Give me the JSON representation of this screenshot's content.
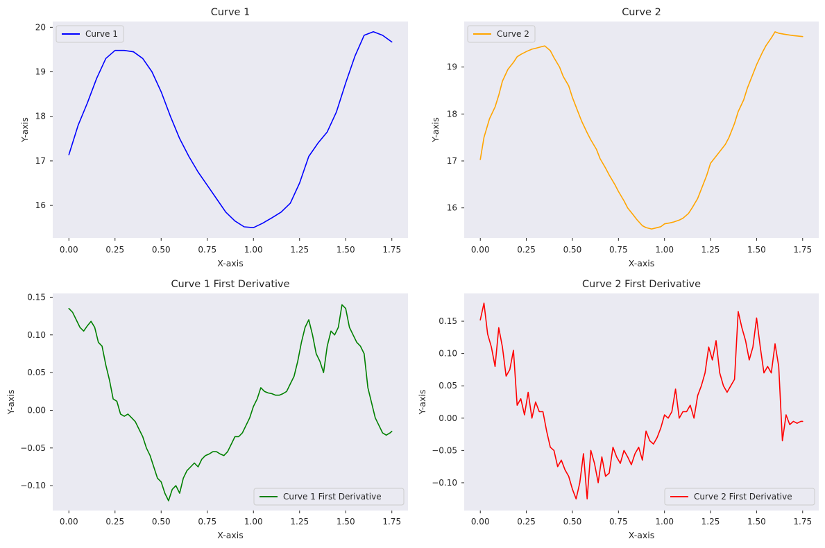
{
  "chart_data": [
    {
      "type": "line",
      "title": "Curve 1",
      "xlabel": "X-axis",
      "ylabel": "Y-axis",
      "xlim": [
        -0.0875,
        1.8375
      ],
      "ylim": [
        15.27,
        20.13
      ],
      "xticks": [
        0.0,
        0.25,
        0.5,
        0.75,
        1.0,
        1.25,
        1.5,
        1.75
      ],
      "xtick_labels": [
        "0.00",
        "0.25",
        "0.50",
        "0.75",
        "1.00",
        "1.25",
        "1.50",
        "1.75"
      ],
      "yticks": [
        16,
        17,
        18,
        19,
        20
      ],
      "ytick_labels": [
        "16",
        "17",
        "18",
        "19",
        "20"
      ],
      "legend": "upper left",
      "grid": false,
      "series": [
        {
          "name": "Curve 1",
          "color": "#0000ff",
          "x": [
            0.0,
            0.05,
            0.1,
            0.15,
            0.2,
            0.25,
            0.3,
            0.35,
            0.4,
            0.45,
            0.5,
            0.55,
            0.6,
            0.65,
            0.7,
            0.75,
            0.8,
            0.85,
            0.9,
            0.95,
            1.0,
            1.05,
            1.1,
            1.15,
            1.2,
            1.25,
            1.3,
            1.35,
            1.4,
            1.45,
            1.5,
            1.55,
            1.6,
            1.65,
            1.7,
            1.75
          ],
          "y": [
            17.14,
            17.8,
            18.3,
            18.85,
            19.3,
            19.48,
            19.48,
            19.45,
            19.3,
            19.0,
            18.55,
            18.0,
            17.5,
            17.1,
            16.75,
            16.45,
            16.15,
            15.85,
            15.65,
            15.52,
            15.5,
            15.6,
            15.72,
            15.85,
            16.05,
            16.5,
            17.1,
            17.4,
            17.65,
            18.1,
            18.75,
            19.35,
            19.82,
            19.9,
            19.82,
            19.67
          ]
        }
      ]
    },
    {
      "type": "line",
      "title": "Curve 2",
      "xlabel": "X-axis",
      "ylabel": "Y-axis",
      "xlim": [
        -0.0875,
        1.8375
      ],
      "ylim": [
        15.36,
        19.97
      ],
      "xticks": [
        0.0,
        0.25,
        0.5,
        0.75,
        1.0,
        1.25,
        1.5,
        1.75
      ],
      "xtick_labels": [
        "0.00",
        "0.25",
        "0.50",
        "0.75",
        "1.00",
        "1.25",
        "1.50",
        "1.75"
      ],
      "yticks": [
        16,
        17,
        18,
        19
      ],
      "ytick_labels": [
        "16",
        "17",
        "18",
        "19"
      ],
      "legend": "upper left",
      "grid": false,
      "series": [
        {
          "name": "Curve 2",
          "color": "#ffa500",
          "x": [
            0.0,
            0.02,
            0.05,
            0.08,
            0.1,
            0.12,
            0.15,
            0.18,
            0.2,
            0.22,
            0.25,
            0.28,
            0.3,
            0.33,
            0.35,
            0.38,
            0.4,
            0.43,
            0.45,
            0.48,
            0.5,
            0.53,
            0.55,
            0.58,
            0.6,
            0.63,
            0.65,
            0.68,
            0.7,
            0.73,
            0.75,
            0.78,
            0.8,
            0.83,
            0.85,
            0.88,
            0.9,
            0.93,
            0.95,
            0.98,
            1.0,
            1.03,
            1.05,
            1.08,
            1.1,
            1.13,
            1.15,
            1.18,
            1.2,
            1.23,
            1.25,
            1.28,
            1.3,
            1.33,
            1.35,
            1.38,
            1.4,
            1.43,
            1.45,
            1.48,
            1.5,
            1.53,
            1.55,
            1.58,
            1.6,
            1.62,
            1.65,
            1.68,
            1.7,
            1.75
          ],
          "y": [
            17.03,
            17.5,
            17.9,
            18.15,
            18.4,
            18.7,
            18.95,
            19.1,
            19.22,
            19.27,
            19.33,
            19.38,
            19.4,
            19.43,
            19.45,
            19.35,
            19.2,
            19.0,
            18.8,
            18.6,
            18.35,
            18.05,
            17.85,
            17.6,
            17.45,
            17.25,
            17.05,
            16.85,
            16.7,
            16.5,
            16.35,
            16.15,
            16.0,
            15.85,
            15.75,
            15.62,
            15.58,
            15.55,
            15.57,
            15.6,
            15.66,
            15.68,
            15.7,
            15.74,
            15.78,
            15.88,
            16.0,
            16.2,
            16.4,
            16.7,
            16.95,
            17.1,
            17.2,
            17.35,
            17.5,
            17.8,
            18.05,
            18.3,
            18.55,
            18.85,
            19.05,
            19.3,
            19.45,
            19.62,
            19.75,
            19.72,
            19.7,
            19.68,
            19.67,
            19.65
          ]
        }
      ]
    },
    {
      "type": "line",
      "title": "Curve 1 First Derivative",
      "xlabel": "X-axis",
      "ylabel": "Y-axis",
      "xlim": [
        -0.0875,
        1.8375
      ],
      "ylim": [
        -0.133,
        0.155
      ],
      "xticks": [
        0.0,
        0.25,
        0.5,
        0.75,
        1.0,
        1.25,
        1.5,
        1.75
      ],
      "xtick_labels": [
        "0.00",
        "0.25",
        "0.50",
        "0.75",
        "1.00",
        "1.25",
        "1.50",
        "1.75"
      ],
      "yticks": [
        -0.1,
        -0.05,
        0.0,
        0.05,
        0.1,
        0.15
      ],
      "ytick_labels": [
        "−0.10",
        "−0.05",
        "0.00",
        "0.05",
        "0.10",
        "0.15"
      ],
      "legend": "lower right",
      "grid": false,
      "series": [
        {
          "name": "Curve 1 First Derivative",
          "color": "#008000",
          "x": [
            0.0,
            0.02,
            0.04,
            0.06,
            0.08,
            0.1,
            0.12,
            0.14,
            0.16,
            0.18,
            0.2,
            0.22,
            0.24,
            0.26,
            0.28,
            0.3,
            0.32,
            0.34,
            0.36,
            0.38,
            0.4,
            0.42,
            0.44,
            0.46,
            0.48,
            0.5,
            0.52,
            0.54,
            0.56,
            0.58,
            0.6,
            0.62,
            0.64,
            0.66,
            0.68,
            0.7,
            0.72,
            0.74,
            0.76,
            0.78,
            0.8,
            0.82,
            0.84,
            0.86,
            0.88,
            0.9,
            0.92,
            0.94,
            0.96,
            0.98,
            1.0,
            1.02,
            1.04,
            1.06,
            1.08,
            1.1,
            1.12,
            1.14,
            1.16,
            1.18,
            1.2,
            1.22,
            1.24,
            1.26,
            1.28,
            1.3,
            1.32,
            1.34,
            1.36,
            1.38,
            1.4,
            1.42,
            1.44,
            1.46,
            1.48,
            1.5,
            1.52,
            1.54,
            1.56,
            1.58,
            1.6,
            1.62,
            1.64,
            1.66,
            1.68,
            1.7,
            1.72,
            1.74,
            1.75
          ],
          "y": [
            0.135,
            0.13,
            0.12,
            0.11,
            0.105,
            0.112,
            0.118,
            0.11,
            0.09,
            0.085,
            0.06,
            0.04,
            0.015,
            0.012,
            -0.005,
            -0.008,
            -0.005,
            -0.01,
            -0.015,
            -0.025,
            -0.035,
            -0.05,
            -0.06,
            -0.075,
            -0.09,
            -0.095,
            -0.11,
            -0.12,
            -0.105,
            -0.1,
            -0.11,
            -0.09,
            -0.08,
            -0.075,
            -0.07,
            -0.075,
            -0.065,
            -0.06,
            -0.058,
            -0.055,
            -0.055,
            -0.058,
            -0.06,
            -0.055,
            -0.045,
            -0.035,
            -0.035,
            -0.03,
            -0.02,
            -0.01,
            0.005,
            0.015,
            0.03,
            0.025,
            0.023,
            0.022,
            0.02,
            0.02,
            0.022,
            0.025,
            0.035,
            0.045,
            0.065,
            0.09,
            0.11,
            0.12,
            0.1,
            0.075,
            0.065,
            0.05,
            0.085,
            0.105,
            0.1,
            0.11,
            0.14,
            0.135,
            0.11,
            0.1,
            0.09,
            0.085,
            0.075,
            0.03,
            0.01,
            -0.01,
            -0.02,
            -0.03,
            -0.033,
            -0.03,
            -0.028
          ]
        }
      ]
    },
    {
      "type": "line",
      "title": "Curve 2 First Derivative",
      "xlabel": "X-axis",
      "ylabel": "Y-axis",
      "xlim": [
        -0.0875,
        1.8375
      ],
      "ylim": [
        -0.143,
        0.193
      ],
      "xticks": [
        0.0,
        0.25,
        0.5,
        0.75,
        1.0,
        1.25,
        1.5,
        1.75
      ],
      "xtick_labels": [
        "0.00",
        "0.25",
        "0.50",
        "0.75",
        "1.00",
        "1.25",
        "1.50",
        "1.75"
      ],
      "yticks": [
        -0.1,
        -0.05,
        0.0,
        0.05,
        0.1,
        0.15
      ],
      "ytick_labels": [
        "−0.10",
        "−0.05",
        "0.00",
        "0.05",
        "0.10",
        "0.15"
      ],
      "legend": "lower right",
      "grid": false,
      "series": [
        {
          "name": "Curve 2 First Derivative",
          "color": "#ff0000",
          "x": [
            0.0,
            0.02,
            0.04,
            0.06,
            0.08,
            0.1,
            0.12,
            0.14,
            0.16,
            0.18,
            0.2,
            0.22,
            0.24,
            0.26,
            0.28,
            0.3,
            0.32,
            0.34,
            0.36,
            0.38,
            0.4,
            0.42,
            0.44,
            0.46,
            0.48,
            0.5,
            0.52,
            0.54,
            0.56,
            0.58,
            0.6,
            0.62,
            0.64,
            0.66,
            0.68,
            0.7,
            0.72,
            0.74,
            0.76,
            0.78,
            0.8,
            0.82,
            0.84,
            0.86,
            0.88,
            0.9,
            0.92,
            0.94,
            0.96,
            0.98,
            1.0,
            1.02,
            1.04,
            1.06,
            1.08,
            1.1,
            1.12,
            1.14,
            1.16,
            1.18,
            1.2,
            1.22,
            1.24,
            1.26,
            1.28,
            1.3,
            1.32,
            1.34,
            1.36,
            1.38,
            1.4,
            1.42,
            1.44,
            1.46,
            1.48,
            1.5,
            1.52,
            1.54,
            1.56,
            1.58,
            1.6,
            1.62,
            1.64,
            1.66,
            1.68,
            1.7,
            1.72,
            1.74,
            1.75
          ],
          "y": [
            0.152,
            0.178,
            0.13,
            0.11,
            0.08,
            0.14,
            0.11,
            0.065,
            0.075,
            0.105,
            0.02,
            0.03,
            0.005,
            0.04,
            0.0,
            0.025,
            0.01,
            0.01,
            -0.02,
            -0.045,
            -0.05,
            -0.075,
            -0.065,
            -0.08,
            -0.09,
            -0.11,
            -0.125,
            -0.1,
            -0.055,
            -0.125,
            -0.05,
            -0.07,
            -0.1,
            -0.06,
            -0.09,
            -0.085,
            -0.045,
            -0.06,
            -0.07,
            -0.05,
            -0.06,
            -0.072,
            -0.055,
            -0.045,
            -0.065,
            -0.02,
            -0.035,
            -0.04,
            -0.03,
            -0.015,
            0.005,
            0.0,
            0.01,
            0.045,
            0.0,
            0.01,
            0.01,
            0.02,
            0.0,
            0.035,
            0.05,
            0.07,
            0.11,
            0.09,
            0.12,
            0.07,
            0.05,
            0.04,
            0.05,
            0.06,
            0.165,
            0.14,
            0.12,
            0.09,
            0.11,
            0.155,
            0.11,
            0.07,
            0.08,
            0.07,
            0.115,
            0.08,
            -0.035,
            0.005,
            -0.01,
            -0.005,
            -0.008,
            -0.005,
            -0.005
          ]
        }
      ]
    }
  ]
}
